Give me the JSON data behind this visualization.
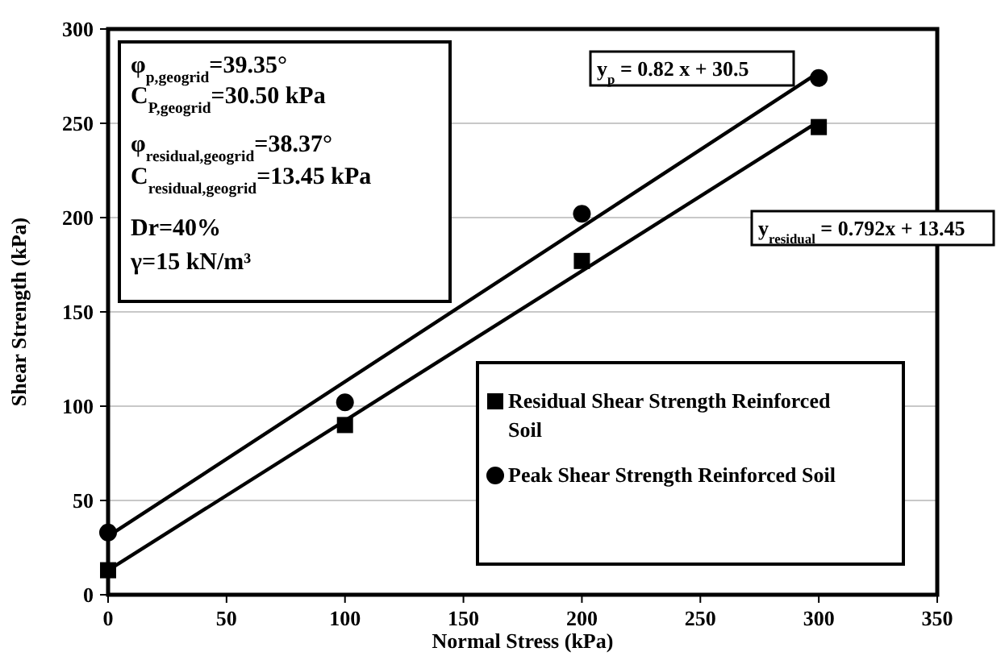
{
  "chart_data": {
    "type": "scatter",
    "xlabel": "Normal Stress  (kPa)",
    "ylabel": "Shear Strength (kPa)",
    "xlim": [
      0,
      350
    ],
    "xticks": [
      0,
      50,
      100,
      150,
      200,
      250,
      300,
      350
    ],
    "ylim": [
      0,
      300
    ],
    "yticks": [
      0,
      50,
      100,
      150,
      200,
      250,
      300
    ],
    "grid": "y",
    "legend": "bottom right",
    "series": [
      {
        "name": "Residual Shear Strength Reinforced Soil",
        "color": "#000000",
        "marker": "square",
        "x": [
          0,
          100,
          200,
          300
        ],
        "values": [
          13,
          90,
          177,
          248
        ]
      },
      {
        "name": "Peak Shear Strength Reinforced Soil",
        "color": "#000000",
        "marker": "circle",
        "x": [
          0,
          100,
          200,
          300
        ],
        "values": [
          33,
          102,
          202,
          274
        ]
      },
      {
        "type": "line",
        "color": "#000000",
        "marker": "none",
        "line_style": "solid",
        "x": [
          0,
          300
        ],
        "values": [
          13,
          251
        ]
      },
      {
        "type": "line",
        "color": "#000000",
        "marker": "none",
        "line_style": "solid",
        "x": [
          0,
          300
        ],
        "values": [
          31,
          277
        ]
      }
    ],
    "annotations": [
      "φ$_{p,geogrid}$=39.35°",
      "C$_{P,geogrid}$=30.50 kPa",
      "φ$_{residual,geogrid}$=38.37°",
      "C$_{residual,geogrid}$=13.45 kPa",
      "Dr=40%",
      "γ=15 kN/m³",
      "y$_{p}$ = 0.82 x + 30.5",
      "y$_{residual}$ = 0.792x + 13.45"
    ]
  }
}
